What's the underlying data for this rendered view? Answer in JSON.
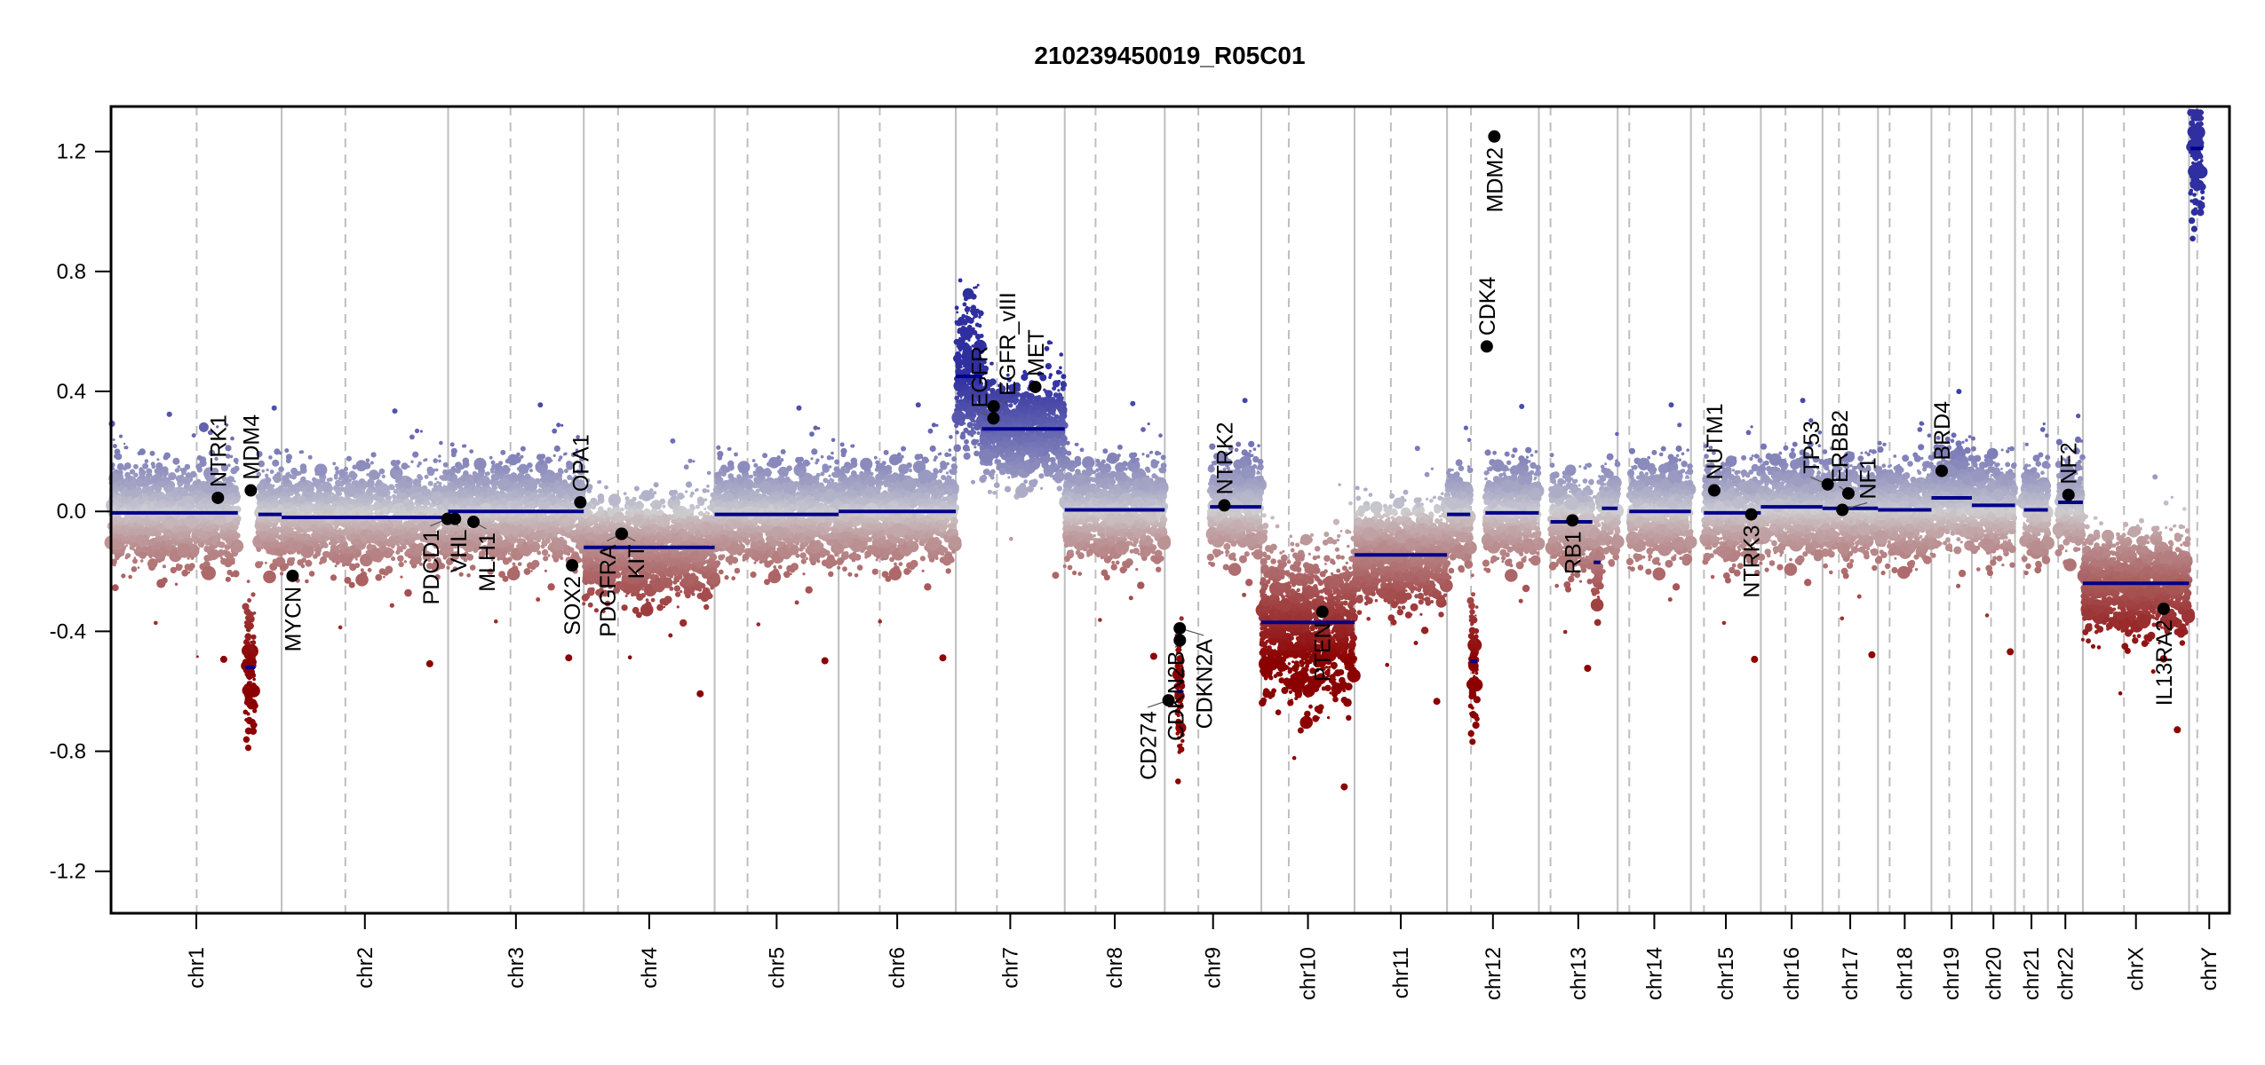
{
  "chart_data": {
    "type": "scatter",
    "title": "210239450019_R05C01",
    "xlabel": "",
    "ylabel": "",
    "ylim": [
      -1.34,
      1.35
    ],
    "yticks": [
      -1.2,
      -0.8,
      -0.4,
      0.0,
      0.4,
      0.8,
      1.2
    ],
    "ytick_labels": [
      "-1.2",
      "-0.8",
      "-0.4",
      "0.0",
      "0.4",
      "0.8",
      "1.2"
    ],
    "grid": false,
    "colors": {
      "gain": "#2f2fa0",
      "neutral": "#cfcfd2",
      "loss": "#8b0000",
      "segment": "#00008b",
      "gene_marker": "#000000",
      "chrom_boundary": "#bebebe",
      "centromere": "#bebebe"
    },
    "chromosomes": [
      {
        "name": "chr1",
        "length_mb": 249,
        "centromere_mb": 125
      },
      {
        "name": "chr2",
        "length_mb": 243,
        "centromere_mb": 93
      },
      {
        "name": "chr3",
        "length_mb": 198,
        "centromere_mb": 91
      },
      {
        "name": "chr4",
        "length_mb": 191,
        "centromere_mb": 50
      },
      {
        "name": "chr5",
        "length_mb": 181,
        "centromere_mb": 48
      },
      {
        "name": "chr6",
        "length_mb": 171,
        "centromere_mb": 60
      },
      {
        "name": "chr7",
        "length_mb": 159,
        "centromere_mb": 60
      },
      {
        "name": "chr8",
        "length_mb": 146,
        "centromere_mb": 45
      },
      {
        "name": "chr9",
        "length_mb": 141,
        "centromere_mb": 49
      },
      {
        "name": "chr10",
        "length_mb": 136,
        "centromere_mb": 40
      },
      {
        "name": "chr11",
        "length_mb": 135,
        "centromere_mb": 53
      },
      {
        "name": "chr12",
        "length_mb": 134,
        "centromere_mb": 35
      },
      {
        "name": "chr13",
        "length_mb": 115,
        "centromere_mb": 17
      },
      {
        "name": "chr14",
        "length_mb": 107,
        "centromere_mb": 17
      },
      {
        "name": "chr15",
        "length_mb": 102,
        "centromere_mb": 19
      },
      {
        "name": "chr16",
        "length_mb": 90,
        "centromere_mb": 36
      },
      {
        "name": "chr17",
        "length_mb": 81,
        "centromere_mb": 24
      },
      {
        "name": "chr18",
        "length_mb": 78,
        "centromere_mb": 17
      },
      {
        "name": "chr19",
        "length_mb": 59,
        "centromere_mb": 26
      },
      {
        "name": "chr20",
        "length_mb": 63,
        "centromere_mb": 28
      },
      {
        "name": "chr21",
        "length_mb": 48,
        "centromere_mb": 13
      },
      {
        "name": "chr22",
        "length_mb": 51,
        "centromere_mb": 15
      },
      {
        "name": "chrX",
        "length_mb": 155,
        "centromere_mb": 60
      },
      {
        "name": "chrY",
        "length_mb": 59,
        "centromere_mb": 12
      }
    ],
    "segments": [
      {
        "chr": "chr1",
        "start": 0,
        "end": 185,
        "value": -0.005
      },
      {
        "chr": "chr1",
        "start": 196,
        "end": 210,
        "value": -0.52
      },
      {
        "chr": "chr1",
        "start": 215,
        "end": 249,
        "value": -0.01
      },
      {
        "chr": "chr2",
        "start": 0,
        "end": 243,
        "value": -0.02
      },
      {
        "chr": "chr3",
        "start": 0,
        "end": 198,
        "value": 0.0
      },
      {
        "chr": "chr4",
        "start": 0,
        "end": 191,
        "value": -0.12
      },
      {
        "chr": "chr5",
        "start": 0,
        "end": 181,
        "value": -0.01
      },
      {
        "chr": "chr6",
        "start": 0,
        "end": 171,
        "value": 0.0
      },
      {
        "chr": "chr7",
        "start": 0,
        "end": 38,
        "value": 0.45
      },
      {
        "chr": "chr7",
        "start": 38,
        "end": 159,
        "value": 0.275
      },
      {
        "chr": "chr8",
        "start": 0,
        "end": 146,
        "value": 0.005
      },
      {
        "chr": "chr9",
        "start": 18,
        "end": 26,
        "value": -0.6
      },
      {
        "chr": "chr9",
        "start": 66,
        "end": 141,
        "value": 0.015
      },
      {
        "chr": "chr10",
        "start": 0,
        "end": 136,
        "value": -0.37
      },
      {
        "chr": "chr11",
        "start": 0,
        "end": 135,
        "value": -0.145
      },
      {
        "chr": "chr12",
        "start": 0,
        "end": 34,
        "value": -0.01
      },
      {
        "chr": "chr12",
        "start": 34,
        "end": 44,
        "value": -0.5
      },
      {
        "chr": "chr12",
        "start": 56,
        "end": 134,
        "value": -0.005
      },
      {
        "chr": "chr13",
        "start": 17,
        "end": 78,
        "value": -0.035
      },
      {
        "chr": "chr13",
        "start": 80,
        "end": 90,
        "value": -0.17
      },
      {
        "chr": "chr13",
        "start": 92,
        "end": 115,
        "value": 0.01
      },
      {
        "chr": "chr14",
        "start": 17,
        "end": 107,
        "value": 0.0
      },
      {
        "chr": "chr15",
        "start": 19,
        "end": 102,
        "value": -0.005
      },
      {
        "chr": "chr16",
        "start": 0,
        "end": 90,
        "value": 0.015
      },
      {
        "chr": "chr17",
        "start": 0,
        "end": 81,
        "value": 0.01
      },
      {
        "chr": "chr18",
        "start": 0,
        "end": 78,
        "value": 0.005
      },
      {
        "chr": "chr19",
        "start": 0,
        "end": 59,
        "value": 0.045
      },
      {
        "chr": "chr20",
        "start": 0,
        "end": 63,
        "value": 0.02
      },
      {
        "chr": "chr21",
        "start": 13,
        "end": 48,
        "value": 0.005
      },
      {
        "chr": "chr22",
        "start": 15,
        "end": 51,
        "value": 0.03
      },
      {
        "chr": "chrX",
        "start": 0,
        "end": 155,
        "value": -0.24
      },
      {
        "chr": "chrY",
        "start": 2,
        "end": 20,
        "value": 1.21
      }
    ],
    "genes": [
      {
        "name": "NTRK1",
        "chr": "chr1",
        "pos": 156,
        "value": 0.045,
        "label_side": "above"
      },
      {
        "name": "MDM4",
        "chr": "chr1",
        "pos": 204,
        "value": 0.07,
        "label_side": "above"
      },
      {
        "name": "MYCN",
        "chr": "chr2",
        "pos": 16,
        "value": -0.215,
        "label_side": "below"
      },
      {
        "name": "PDCD1",
        "chr": "chr2",
        "pos": 242,
        "value": -0.025,
        "label_side": "below"
      },
      {
        "name": "VHL",
        "chr": "chr3",
        "pos": 10,
        "value": -0.025,
        "label_side": "below"
      },
      {
        "name": "MLH1",
        "chr": "chr3",
        "pos": 37,
        "value": -0.035,
        "label_side": "below"
      },
      {
        "name": "SOX2",
        "chr": "chr3",
        "pos": 181,
        "value": -0.18,
        "label_side": "below"
      },
      {
        "name": "OPA1",
        "chr": "chr3",
        "pos": 193,
        "value": 0.03,
        "label_side": "above"
      },
      {
        "name": "PDGFRA",
        "chr": "chr4",
        "pos": 55,
        "value": -0.075,
        "label_side": "below"
      },
      {
        "name": "KIT",
        "chr": "chr4",
        "pos": 55.5,
        "value": -0.075,
        "label_side": "below"
      },
      {
        "name": "EGFR",
        "chr": "chr7",
        "pos": 55,
        "value": 0.31,
        "label_side": "above"
      },
      {
        "name": "EGFR_vIII",
        "chr": "chr7",
        "pos": 55.2,
        "value": 0.35,
        "label_side": "above"
      },
      {
        "name": "MET",
        "chr": "chr7",
        "pos": 116,
        "value": 0.415,
        "label_side": "above"
      },
      {
        "name": "CD274",
        "chr": "chr9",
        "pos": 5.5,
        "value": -0.63,
        "label_side": "below"
      },
      {
        "name": "CDKN2A",
        "chr": "chr9",
        "pos": 21.9,
        "value": -0.39,
        "label_side": "below"
      },
      {
        "name": "CDKN2B",
        "chr": "chr9",
        "pos": 22.0,
        "value": -0.43,
        "label_side": "below"
      },
      {
        "name": "NTRK2",
        "chr": "chr9",
        "pos": 87,
        "value": 0.02,
        "label_side": "above"
      },
      {
        "name": "PTEN",
        "chr": "chr10",
        "pos": 89,
        "value": -0.335,
        "label_side": "below"
      },
      {
        "name": "CDK4",
        "chr": "chr12",
        "pos": 58,
        "value": 0.55,
        "label_side": "above"
      },
      {
        "name": "MDM2",
        "chr": "chr12",
        "pos": 69,
        "value": 1.25,
        "label_side": "below"
      },
      {
        "name": "RB1",
        "chr": "chr13",
        "pos": 49,
        "value": -0.03,
        "label_side": "below"
      },
      {
        "name": "NUTM1",
        "chr": "chr15",
        "pos": 34,
        "value": 0.07,
        "label_side": "above"
      },
      {
        "name": "NTRK3",
        "chr": "chr15",
        "pos": 88,
        "value": -0.01,
        "label_side": "below"
      },
      {
        "name": "TP53",
        "chr": "chr17",
        "pos": 7.6,
        "value": 0.09,
        "label_side": "above"
      },
      {
        "name": "NF1",
        "chr": "chr17",
        "pos": 29,
        "value": 0.005,
        "label_side": "above"
      },
      {
        "name": "ERBB2",
        "chr": "chr17",
        "pos": 37.8,
        "value": 0.06,
        "label_side": "above"
      },
      {
        "name": "BRD4",
        "chr": "chr19",
        "pos": 15,
        "value": 0.135,
        "label_side": "above"
      },
      {
        "name": "NF2",
        "chr": "chr22",
        "pos": 30,
        "value": 0.055,
        "label_side": "above"
      },
      {
        "name": "IL13RA2",
        "chr": "chrX",
        "pos": 118,
        "value": -0.325,
        "label_side": "below"
      }
    ]
  }
}
